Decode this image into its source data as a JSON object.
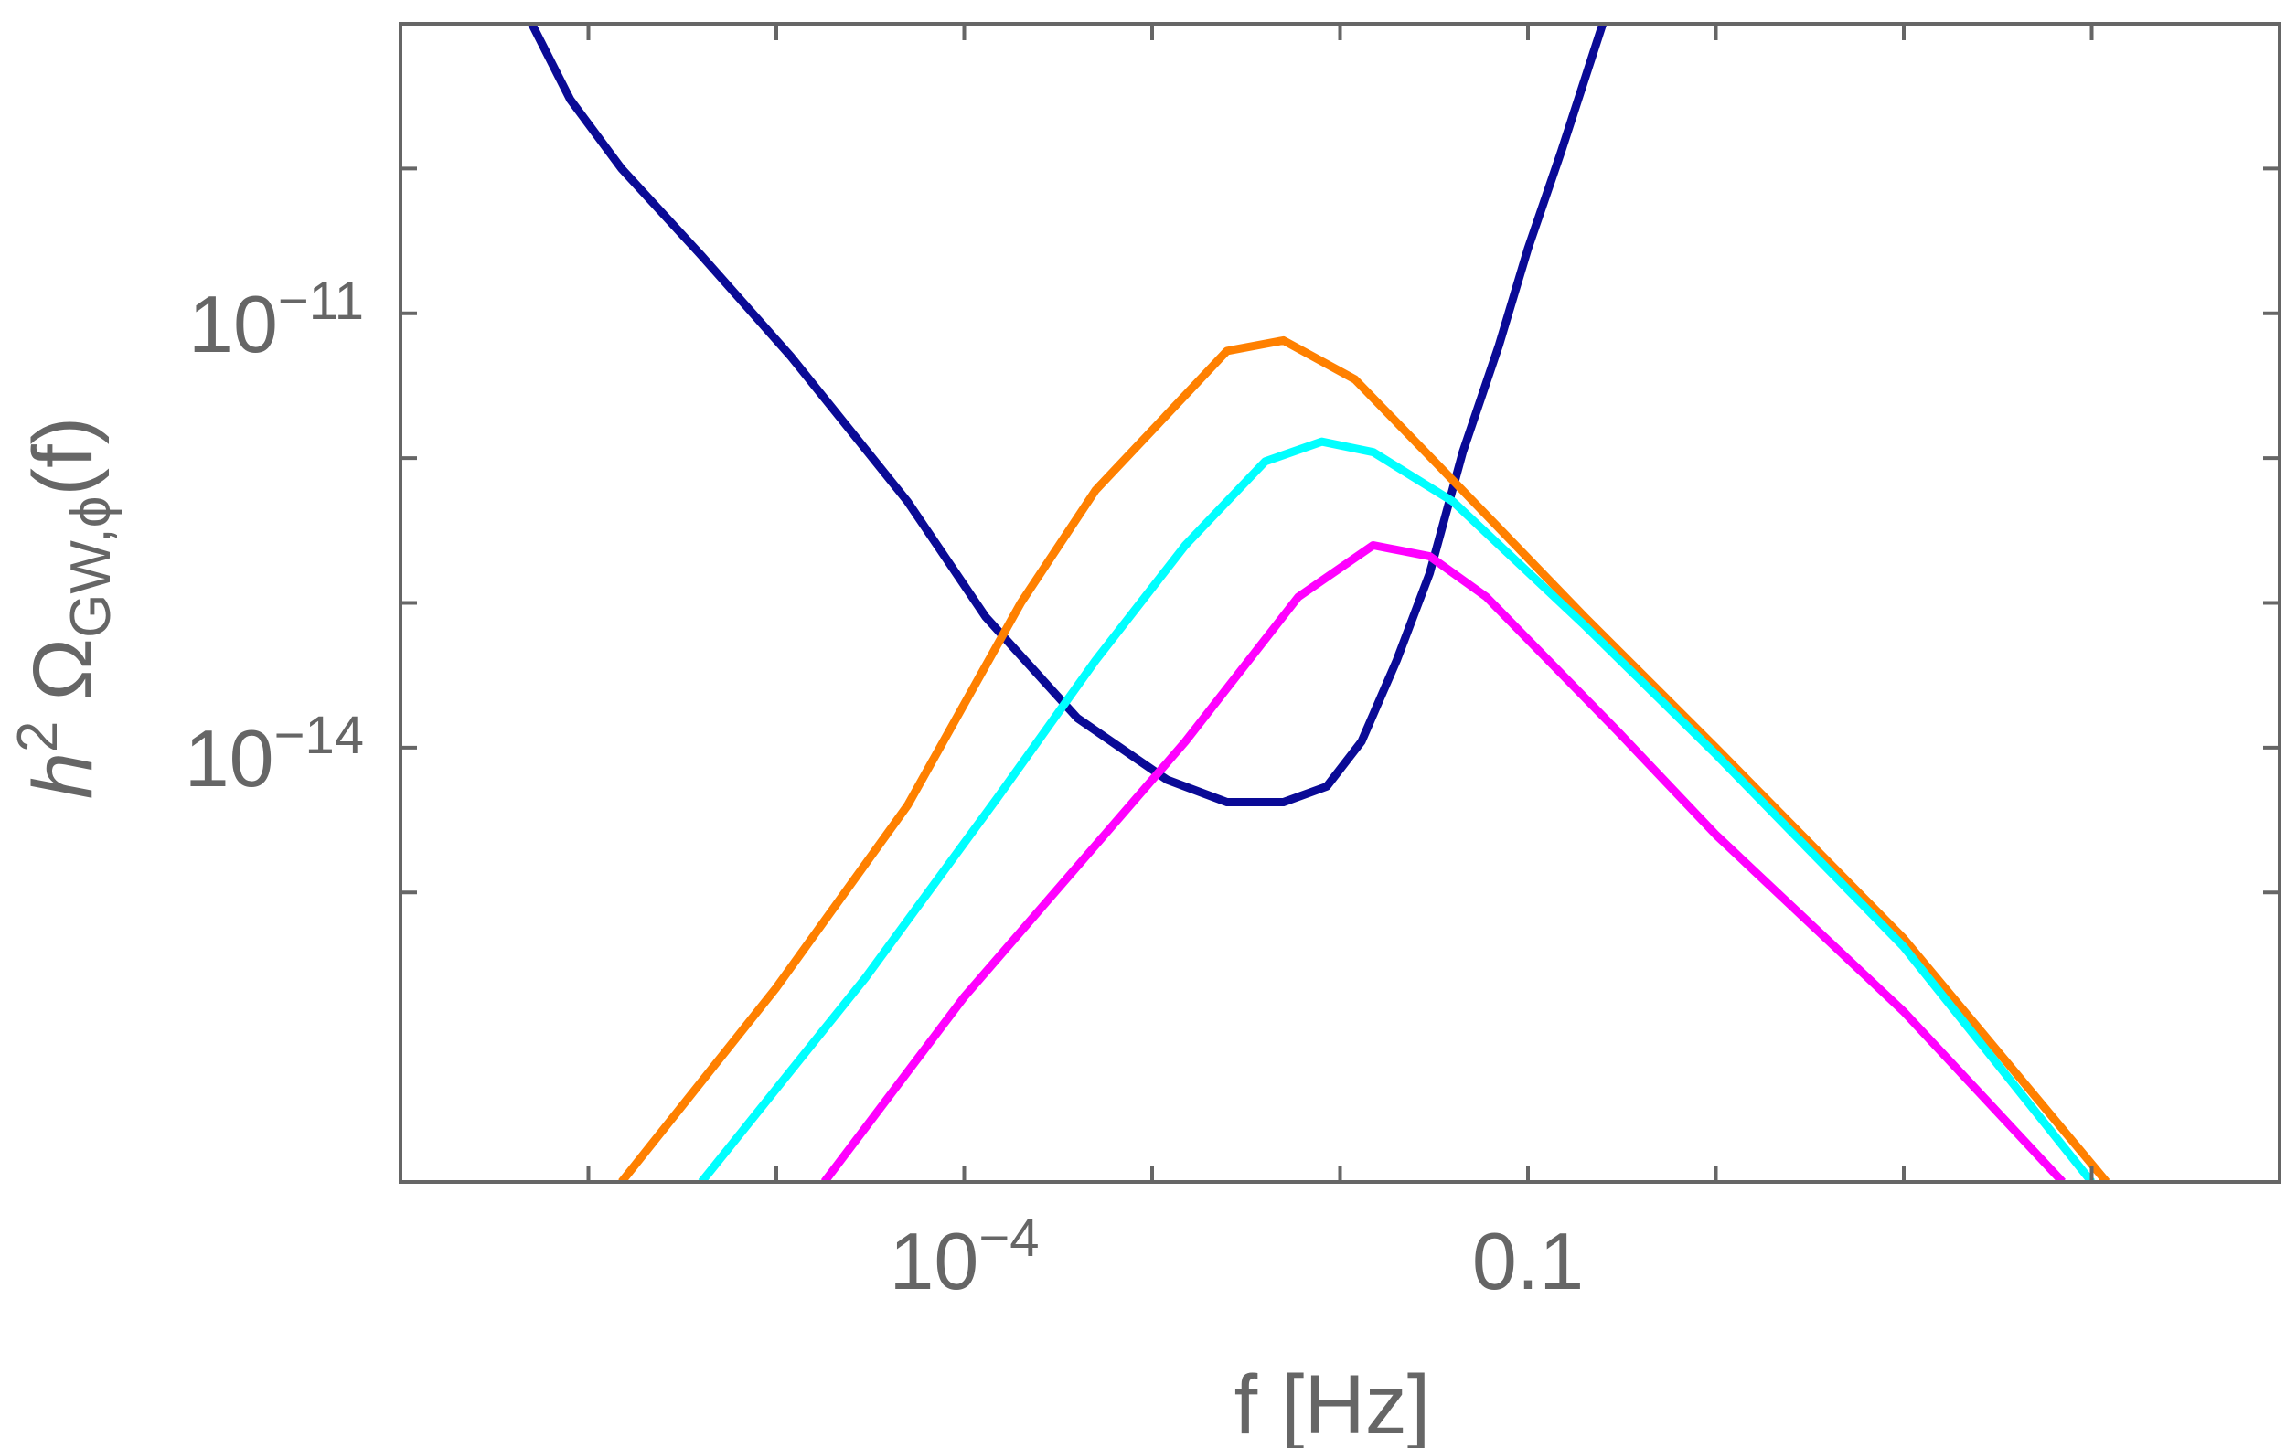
{
  "chart_data": {
    "type": "line",
    "title": "",
    "xlabel": "f [Hz]",
    "ylabel": {
      "base": "h",
      "sup": "2",
      "omega": "Ω",
      "sub": "GW,ϕ",
      "tail": "(f)"
    },
    "xscale": "log",
    "yscale": "log",
    "xlim": [
      1e-07,
      1000
    ],
    "ylim": [
      1e-17,
      1e-09
    ],
    "grid": false,
    "legend": "none",
    "x_ticks": [
      {
        "value": 0.0001,
        "base": "10",
        "exp": "−4"
      },
      {
        "value": 0.1,
        "text": "0.1"
      }
    ],
    "y_ticks": [
      {
        "value": 1e-11,
        "base": "10",
        "exp": "−11"
      },
      {
        "value": 1e-14,
        "base": "10",
        "exp": "−14"
      }
    ],
    "x_minor_ticks": [
      1e-06,
      1e-05,
      0.001,
      0.01,
      1,
      10,
      100
    ],
    "y_minor_ticks": [
      1e-10,
      1e-12,
      1e-13,
      1e-15
    ],
    "series": [
      {
        "color": "#0a0a96",
        "x": [
          5e-07,
          8e-07,
          1.5e-06,
          4e-06,
          1.2e-05,
          5e-05,
          0.00013,
          0.0004,
          0.0012,
          0.0025,
          0.005,
          0.0085,
          0.013,
          0.02,
          0.03,
          0.045,
          0.07,
          0.1,
          0.15,
          0.25
        ],
        "y": [
          1e-09,
          3e-10,
          1e-10,
          2.5e-11,
          5e-12,
          5e-13,
          8e-14,
          1.6e-14,
          6e-15,
          4.2e-15,
          4.2e-15,
          5.4e-15,
          1.1e-14,
          4e-14,
          1.6e-13,
          1.1e-12,
          6e-12,
          2.8e-11,
          1.3e-10,
          1e-09
        ]
      },
      {
        "color": "#ff8000",
        "x": [
          1.5e-06,
          1e-05,
          5e-05,
          0.0002,
          0.0005,
          0.0012,
          0.0025,
          0.005,
          0.012,
          0.04,
          0.2,
          1,
          10,
          120
        ],
        "y": [
          1e-17,
          2.2e-16,
          4e-15,
          1e-13,
          6e-13,
          2e-12,
          5.5e-12,
          6.5e-12,
          3.5e-12,
          7e-13,
          8e-14,
          1e-14,
          4.8e-16,
          1e-17
        ]
      },
      {
        "color": "#00ffff",
        "x": [
          4e-06,
          3e-05,
          0.00015,
          0.0005,
          0.0015,
          0.004,
          0.008,
          0.015,
          0.04,
          0.2,
          1,
          10,
          100
        ],
        "y": [
          1e-17,
          2.6e-16,
          4.5e-15,
          4e-14,
          2.5e-13,
          9.5e-13,
          1.3e-12,
          1.1e-12,
          5e-13,
          7e-14,
          9e-15,
          4.2e-16,
          1e-17
        ]
      },
      {
        "color": "#ff00ff",
        "x": [
          1.8e-05,
          0.0001,
          0.0015,
          0.006,
          0.015,
          0.03,
          0.06,
          0.3,
          1,
          10,
          70
        ],
        "y": [
          1e-17,
          1.9e-16,
          1.1e-14,
          1.1e-13,
          2.5e-13,
          2.1e-13,
          1.1e-13,
          1.3e-14,
          2.5e-15,
          1.5e-16,
          1e-17
        ]
      }
    ]
  }
}
